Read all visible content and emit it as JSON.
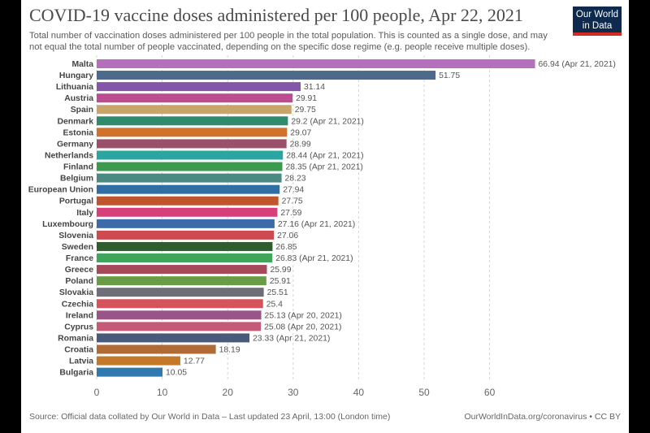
{
  "title": "COVID-19 vaccine doses administered per 100 people, Apr 22, 2021",
  "subtitle": "Total number of vaccination doses administered per 100 people in the total population. This is counted as a single dose, and may not equal the total number of people vaccinated, depending on the specific dose regime (e.g. people receive multiple doses).",
  "logo": {
    "line1": "Our World",
    "line2": "in Data",
    "bg": "#0e2a4f",
    "accent": "#d42b21"
  },
  "source": "Source: Official data collated by Our World in Data – Last updated 23 April, 13:00 (London time)",
  "site": "OurWorldInData.org/coronavirus • CC BY",
  "chart_data": {
    "type": "bar",
    "orientation": "horizontal",
    "xlim": [
      0,
      67
    ],
    "xticks": [
      0,
      10,
      20,
      30,
      40,
      50,
      60
    ],
    "grid": "vertical dashed",
    "bars": [
      {
        "category": "Malta",
        "value": 66.94,
        "label": "66.94 (Apr 21, 2021)",
        "color": "#b56fbc"
      },
      {
        "category": "Hungary",
        "value": 51.75,
        "label": "51.75",
        "color": "#4c6b8c"
      },
      {
        "category": "Lithuania",
        "value": 31.14,
        "label": "31.14",
        "color": "#8455a8"
      },
      {
        "category": "Austria",
        "value": 29.91,
        "label": "29.91",
        "color": "#bd4d90"
      },
      {
        "category": "Spain",
        "value": 29.75,
        "label": "29.75",
        "color": "#c9a56a"
      },
      {
        "category": "Denmark",
        "value": 29.2,
        "label": "29.2 (Apr 21, 2021)",
        "color": "#2f8b6b"
      },
      {
        "category": "Estonia",
        "value": 29.07,
        "label": "29.07",
        "color": "#d0722b"
      },
      {
        "category": "Germany",
        "value": 28.99,
        "label": "28.99",
        "color": "#9a4f6a"
      },
      {
        "category": "Netherlands",
        "value": 28.44,
        "label": "28.44 (Apr 21, 2021)",
        "color": "#2aa5a0"
      },
      {
        "category": "Finland",
        "value": 28.35,
        "label": "28.35 (Apr 21, 2021)",
        "color": "#3b9a4e"
      },
      {
        "category": "Belgium",
        "value": 28.23,
        "label": "28.23",
        "color": "#4a8a80"
      },
      {
        "category": "European Union",
        "value": 27.94,
        "label": "27.94",
        "color": "#2f6fa5"
      },
      {
        "category": "Portugal",
        "value": 27.75,
        "label": "27.75",
        "color": "#c0542d"
      },
      {
        "category": "Italy",
        "value": 27.59,
        "label": "27.59",
        "color": "#d63f7a"
      },
      {
        "category": "Luxembourg",
        "value": 27.16,
        "label": "27.16 (Apr 21, 2021)",
        "color": "#3d6aa8"
      },
      {
        "category": "Slovenia",
        "value": 27.06,
        "label": "27.06",
        "color": "#cc4a50"
      },
      {
        "category": "Sweden",
        "value": 26.85,
        "label": "26.85",
        "color": "#2f5d2f"
      },
      {
        "category": "France",
        "value": 26.83,
        "label": "26.83 (Apr 21, 2021)",
        "color": "#3fa55a"
      },
      {
        "category": "Greece",
        "value": 25.99,
        "label": "25.99",
        "color": "#a64a5a"
      },
      {
        "category": "Poland",
        "value": 25.91,
        "label": "25.91",
        "color": "#6a9c48"
      },
      {
        "category": "Slovakia",
        "value": 25.51,
        "label": "25.51",
        "color": "#6e6e78"
      },
      {
        "category": "Czechia",
        "value": 25.4,
        "label": "25.4",
        "color": "#d5535a"
      },
      {
        "category": "Ireland",
        "value": 25.13,
        "label": "25.13 (Apr 20, 2021)",
        "color": "#9a5588"
      },
      {
        "category": "Cyprus",
        "value": 25.08,
        "label": "25.08 (Apr 20, 2021)",
        "color": "#c45a78"
      },
      {
        "category": "Romania",
        "value": 23.33,
        "label": "23.33 (Apr 21, 2021)",
        "color": "#4a5a7a"
      },
      {
        "category": "Croatia",
        "value": 18.19,
        "label": "18.19",
        "color": "#b06a35"
      },
      {
        "category": "Latvia",
        "value": 12.77,
        "label": "12.77",
        "color": "#c4782a"
      },
      {
        "category": "Bulgaria",
        "value": 10.05,
        "label": "10.05",
        "color": "#2f79b0"
      }
    ]
  }
}
